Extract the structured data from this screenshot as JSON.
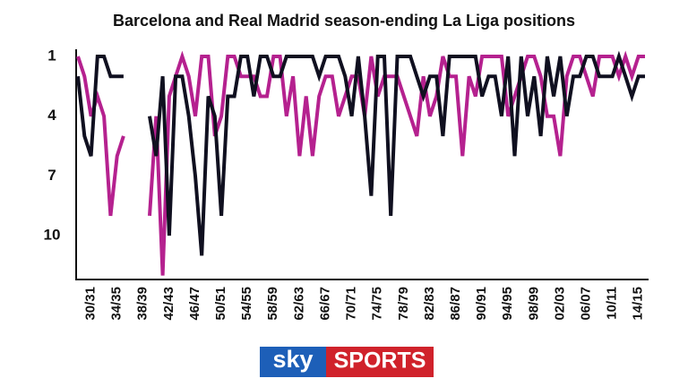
{
  "chart_data": {
    "type": "line",
    "title": "Barcelona and Real Madrid season-ending La Liga positions",
    "categories": [
      null,
      null,
      "30/31",
      null,
      null,
      null,
      "34/35",
      null,
      null,
      null,
      "38/39",
      null,
      null,
      null,
      "42/43",
      null,
      null,
      null,
      "46/47",
      null,
      null,
      null,
      "50/51",
      null,
      null,
      null,
      "54/55",
      null,
      null,
      null,
      "58/59",
      null,
      null,
      null,
      "62/63",
      null,
      null,
      null,
      "66/67",
      null,
      null,
      null,
      "70/71",
      null,
      null,
      null,
      "74/75",
      null,
      null,
      null,
      "78/79",
      null,
      null,
      null,
      "82/83",
      null,
      null,
      null,
      "86/87",
      null,
      null,
      null,
      "90/91",
      null,
      null,
      null,
      "94/95",
      null,
      null,
      null,
      "98/99",
      null,
      null,
      null,
      "02/03",
      null,
      null,
      null,
      "06/07",
      null,
      null,
      null,
      "10/11",
      null,
      null,
      null,
      "14/15",
      null
    ],
    "series": [
      {
        "color": "#b5218f",
        "values": [
          1,
          2,
          4,
          3,
          4,
          9,
          6,
          5,
          null,
          null,
          null,
          9,
          4,
          12,
          3,
          2,
          1,
          2,
          4,
          1,
          1,
          5,
          4,
          1,
          1,
          2,
          2,
          2,
          3,
          3,
          1,
          1,
          4,
          2,
          6,
          3,
          6,
          3,
          2,
          2,
          4,
          3,
          2,
          2,
          4,
          1,
          3,
          2,
          2,
          2,
          3,
          4,
          5,
          2,
          4,
          3,
          1,
          2,
          2,
          6,
          2,
          3,
          1,
          1,
          1,
          1,
          4,
          3,
          2,
          1,
          1,
          2,
          4,
          4,
          6,
          2,
          1,
          1,
          2,
          3,
          1,
          1,
          1,
          2,
          1,
          2,
          1,
          1
        ]
      },
      {
        "color": "#101020",
        "values": [
          2,
          5,
          6,
          1,
          1,
          2,
          2,
          2,
          null,
          null,
          null,
          4,
          6,
          2,
          10,
          2,
          2,
          4,
          7,
          11,
          3,
          4,
          9,
          3,
          3,
          1,
          1,
          3,
          1,
          1,
          2,
          2,
          1,
          1,
          1,
          1,
          1,
          2,
          1,
          1,
          1,
          2,
          4,
          1,
          4,
          8,
          1,
          1,
          9,
          1,
          1,
          1,
          2,
          3,
          2,
          2,
          5,
          1,
          1,
          1,
          1,
          1,
          3,
          2,
          2,
          4,
          1,
          6,
          1,
          4,
          2,
          5,
          1,
          3,
          1,
          4,
          2,
          2,
          1,
          1,
          2,
          2,
          2,
          1,
          2,
          3,
          2,
          2
        ]
      }
    ],
    "ylim": [
      1,
      12.2
    ],
    "yticks": [
      1,
      4,
      7,
      10
    ],
    "y_inverted": true,
    "grid": false
  },
  "logo": {
    "left": "sky",
    "right": "SPORTS"
  }
}
